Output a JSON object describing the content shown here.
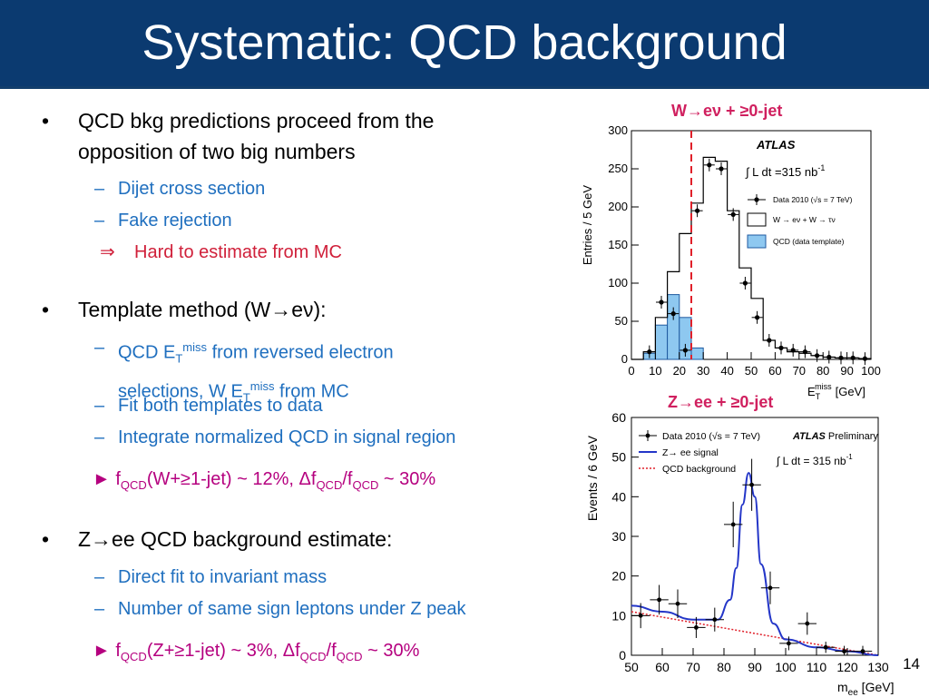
{
  "title": "Systematic: QCD background",
  "page_number": "14",
  "bullets": {
    "b1": "QCD bkg predictions proceed from the",
    "b1b": "opposition of two big numbers",
    "b1_sub1": "Dijet cross section",
    "b1_sub2": "Fake rejection",
    "b1_implies": "Hard to estimate from MC",
    "b2": "Template method (W→eν):",
    "b2_sub1_a": "QCD E",
    "b2_sub1_T": "T",
    "b2_sub1_miss": "miss",
    "b2_sub1_b": " from reversed electron",
    "b2_sub1_c": "selections, W E",
    "b2_sub1_d": " from MC",
    "b2_sub2": "Fit both templates to data",
    "b2_sub3": "Integrate normalized QCD in signal region",
    "b2_result": "► f_QCD(W+≥1-jet) ~ 12%, Δf_QCD/f_QCD ~ 30%",
    "b3": "Z→ee QCD background estimate:",
    "b3_sub1": "Direct fit to invariant mass",
    "b3_sub2": "Number of same sign leptons under Z peak",
    "b3_result": "► f_QCD(Z+≥1-jet) ~ 3%, Δf_QCD/f_QCD ~ 30%"
  },
  "result_parts": {
    "f": "f",
    "qcd": "QCD",
    "w_mid": "(W+≥1-jet) ~ 12%, ",
    "delta": "Δf",
    "slash": "/f",
    "w_end": " ~ 30%",
    "z_mid": "(Z+≥1-jet) ~ 3%, ",
    "z_end": " ~ 30%",
    "arrow": "►"
  },
  "chart_data": [
    {
      "type": "bar",
      "title": "W→eν + ≥0-jet",
      "xlabel": "E_T^miss [GeV]",
      "ylabel": "Entries / 5 GeV",
      "xlim": [
        0,
        100
      ],
      "ylim": [
        0,
        300
      ],
      "xticks": [
        "0",
        "10",
        "20",
        "30",
        "40",
        "50",
        "60",
        "70",
        "80",
        "90",
        "100"
      ],
      "yticks": [
        "0",
        "50",
        "100",
        "150",
        "200",
        "250",
        "300"
      ],
      "bin_width": 5,
      "bin_edges_start": [
        0,
        5,
        10,
        15,
        20,
        25,
        30,
        35,
        40,
        45,
        50,
        55,
        60,
        65,
        70,
        75,
        80,
        85,
        90,
        95
      ],
      "series": [
        {
          "name": "Data 2010 (√s = 7 TeV)",
          "values": [
            0,
            10,
            75,
            60,
            12,
            195,
            255,
            250,
            190,
            100,
            55,
            25,
            15,
            12,
            10,
            5,
            3,
            2,
            2,
            1
          ]
        },
        {
          "name": "W → eν + W → τν",
          "values": [
            0,
            10,
            55,
            115,
            165,
            205,
            265,
            260,
            195,
            120,
            80,
            25,
            15,
            10,
            8,
            5,
            3,
            2,
            2,
            1
          ]
        },
        {
          "name": "QCD (data template)",
          "values": [
            0,
            8,
            45,
            85,
            55,
            15,
            0,
            0,
            0,
            0,
            0,
            0,
            0,
            0,
            0,
            0,
            0,
            0,
            0,
            0
          ]
        }
      ],
      "cut": 25,
      "annotations": [
        "ATLAS",
        "∫ L dt =315 nb",
        "-1",
        "E",
        "T",
        "miss",
        "[GeV]"
      ]
    },
    {
      "type": "scatter",
      "title": "Z→ee + ≥0-jet",
      "xlabel": "m_ee [GeV]",
      "ylabel": "Events / 6 GeV",
      "xlim": [
        50,
        130
      ],
      "ylim": [
        0,
        60
      ],
      "xticks": [
        "50",
        "60",
        "70",
        "80",
        "90",
        "100",
        "110",
        "120",
        "130"
      ],
      "yticks": [
        "0",
        "10",
        "20",
        "30",
        "40",
        "50",
        "60"
      ],
      "series": [
        {
          "name": "Data 2010 (√s = 7 TeV)",
          "x": [
            53,
            59,
            65,
            71,
            77,
            83,
            89,
            95,
            101,
            107,
            113,
            119,
            125
          ],
          "y": [
            10,
            14,
            13,
            7,
            9,
            33,
            43,
            17,
            3,
            8,
            2,
            1,
            1
          ]
        },
        {
          "name": "Z→ ee signal",
          "x": [
            50,
            60,
            70,
            78,
            82,
            84,
            86,
            88,
            90,
            92,
            96,
            100,
            110,
            120,
            130
          ],
          "y": [
            12.5,
            11,
            9,
            9,
            14,
            22,
            38,
            46,
            40,
            23,
            8,
            4,
            2,
            1,
            0
          ]
        },
        {
          "name": "QCD background",
          "x": [
            50,
            130
          ],
          "y": [
            11,
            0
          ]
        }
      ],
      "annotations": [
        "ATLAS Preliminary",
        "∫ L dt = 315 nb",
        "-1"
      ]
    }
  ]
}
